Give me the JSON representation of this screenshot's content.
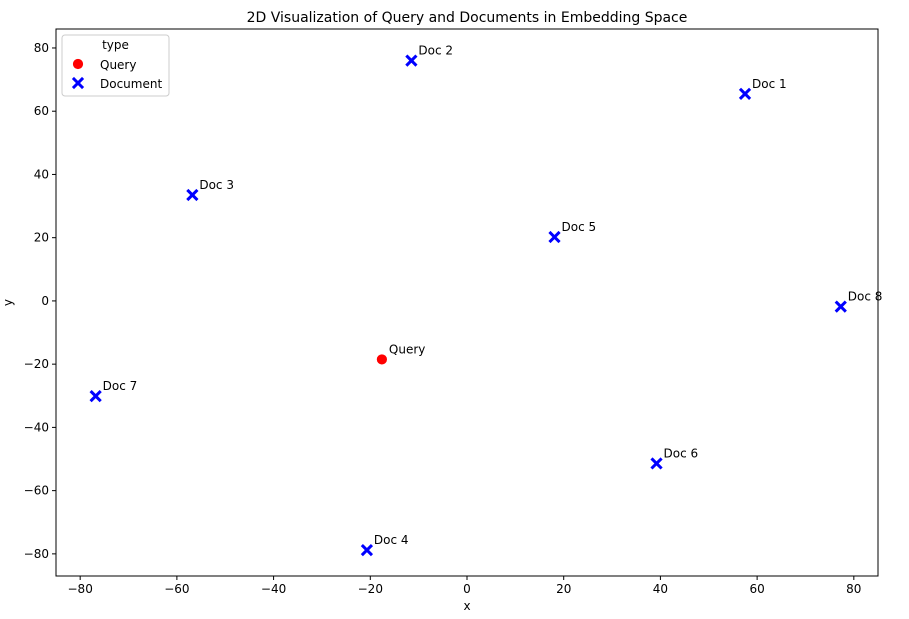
{
  "chart_data": {
    "type": "scatter",
    "title": "2D Visualization of Query and Documents in Embedding Space",
    "xlabel": "x",
    "ylabel": "y",
    "xlim": [
      -85,
      85
    ],
    "ylim": [
      -87,
      86
    ],
    "xticks": [
      -80,
      -60,
      -40,
      -20,
      0,
      20,
      40,
      60,
      80
    ],
    "yticks": [
      -80,
      -60,
      -40,
      -20,
      0,
      20,
      40,
      60,
      80
    ],
    "xtick_labels": [
      "−80",
      "−60",
      "−40",
      "−20",
      "0",
      "20",
      "40",
      "60",
      "80"
    ],
    "ytick_labels": [
      "−80",
      "−60",
      "−40",
      "−20",
      "0",
      "20",
      "40",
      "60",
      "80"
    ],
    "grid": false,
    "legend": {
      "title": "type",
      "placement": "top-left",
      "entries": [
        {
          "name": "Query",
          "marker": "circle",
          "color": "#ff0000"
        },
        {
          "name": "Document",
          "marker": "x",
          "color": "#0000ff"
        }
      ]
    },
    "points": [
      {
        "label": "Query",
        "x": -17.6,
        "y": -18.5,
        "type": "Query"
      },
      {
        "label": "Doc 1",
        "x": 57.5,
        "y": 65.5,
        "type": "Document"
      },
      {
        "label": "Doc 2",
        "x": -11.5,
        "y": 76,
        "type": "Document"
      },
      {
        "label": "Doc 3",
        "x": -56.8,
        "y": 33.5,
        "type": "Document"
      },
      {
        "label": "Doc 4",
        "x": -20.7,
        "y": -78.8,
        "type": "Document"
      },
      {
        "label": "Doc 5",
        "x": 18.1,
        "y": 20.2,
        "type": "Document"
      },
      {
        "label": "Doc 6",
        "x": 39.2,
        "y": -51.4,
        "type": "Document"
      },
      {
        "label": "Doc 7",
        "x": -76.8,
        "y": -30.1,
        "type": "Document"
      },
      {
        "label": "Doc 8",
        "x": 77.3,
        "y": -1.8,
        "type": "Document"
      }
    ]
  }
}
